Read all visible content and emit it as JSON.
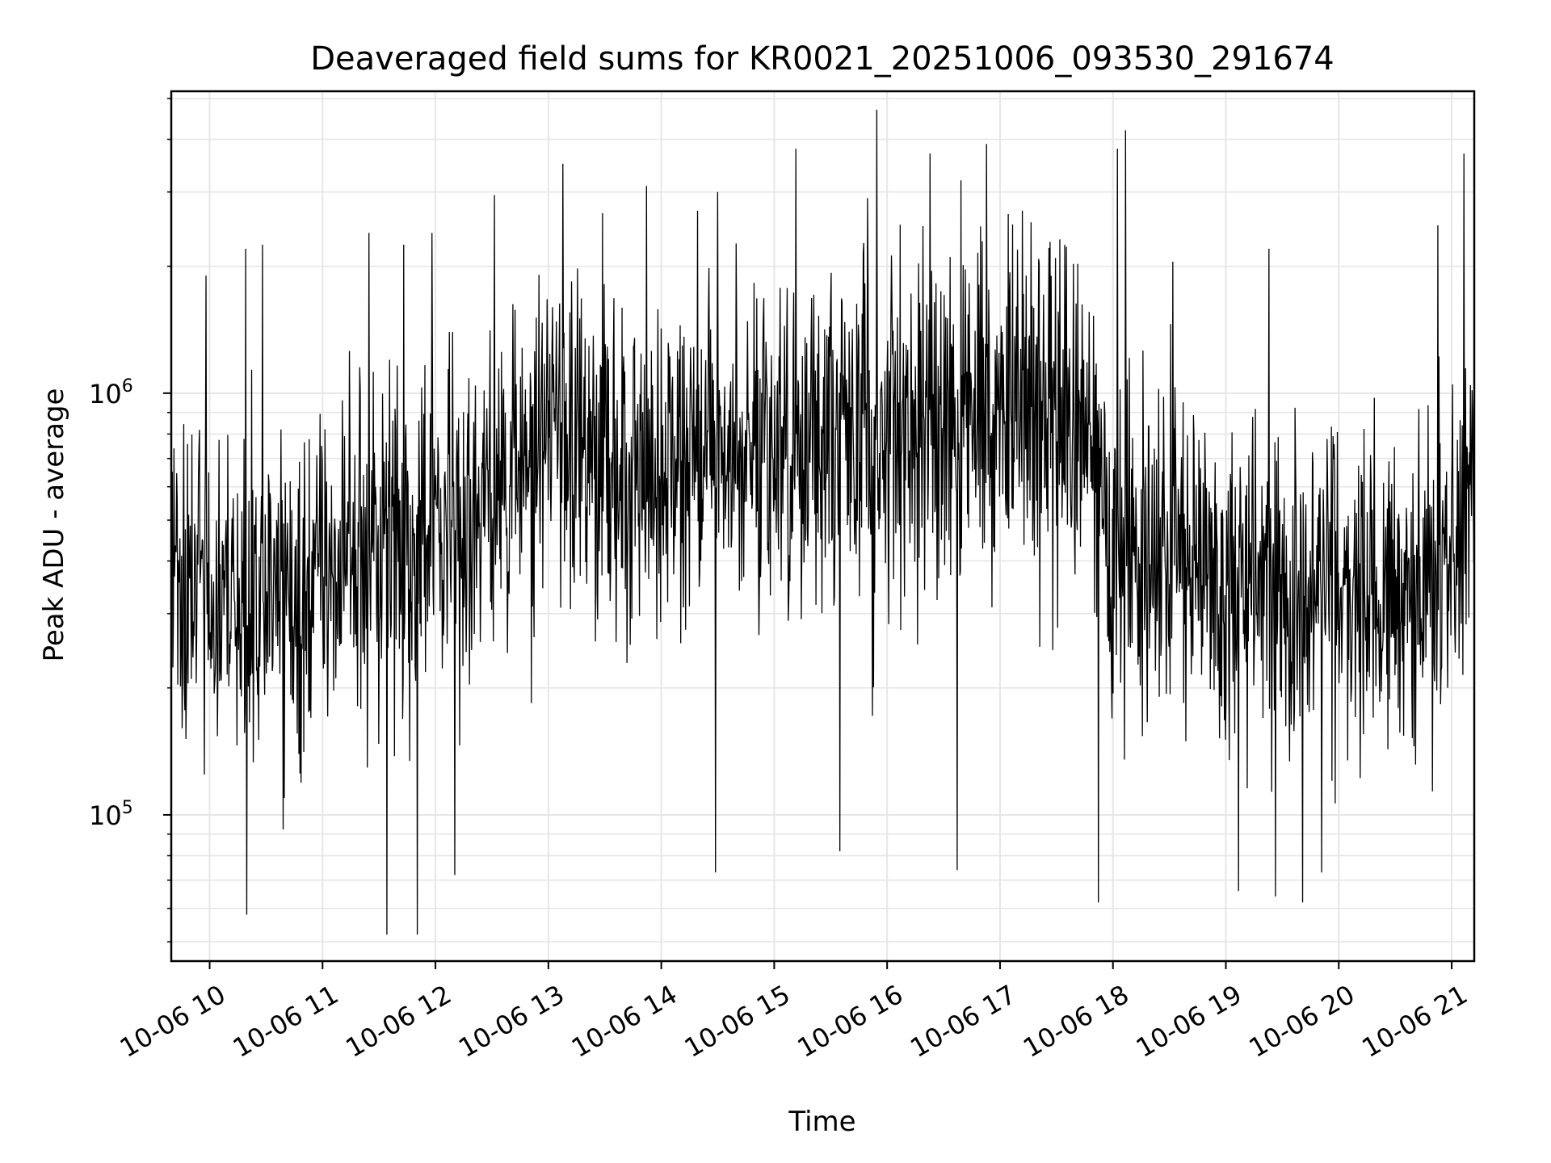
{
  "chart_data": {
    "type": "line",
    "title": "Deaveraged field sums for KR0021_20251006_093530_291674",
    "xlabel": "Time",
    "ylabel": "Peak ADU - average",
    "yscale": "log",
    "ylim": [
      45000,
      5200000
    ],
    "xlim_hours": [
      9.66,
      21.2
    ],
    "grid": true,
    "line_color": "#000000",
    "grid_color": "#e6e6e6",
    "x_ticks": [
      {
        "hour": 10,
        "label": "10-06 10"
      },
      {
        "hour": 11,
        "label": "10-06 11"
      },
      {
        "hour": 12,
        "label": "10-06 12"
      },
      {
        "hour": 13,
        "label": "10-06 13"
      },
      {
        "hour": 14,
        "label": "10-06 14"
      },
      {
        "hour": 15,
        "label": "10-06 15"
      },
      {
        "hour": 16,
        "label": "10-06 16"
      },
      {
        "hour": 17,
        "label": "10-06 17"
      },
      {
        "hour": 18,
        "label": "10-06 18"
      },
      {
        "hour": 19,
        "label": "10-06 19"
      },
      {
        "hour": 20,
        "label": "10-06 20"
      },
      {
        "hour": 21,
        "label": "10-06 21"
      }
    ],
    "y_ticks": [
      {
        "value": 100000,
        "base": "10",
        "exp": "5"
      },
      {
        "value": 1000000,
        "base": "10",
        "exp": "6"
      }
    ],
    "series": [
      {
        "name": "deaveraged field sum",
        "x_start_hour": 9.66,
        "x_end_hour": 21.2,
        "n_points": 2400,
        "trend_hours": [
          9.66,
          10.0,
          10.5,
          11.0,
          11.5,
          12.0,
          12.5,
          13.0,
          13.3,
          13.6,
          14.0,
          14.5,
          15.0,
          15.5,
          16.0,
          16.5,
          17.0,
          17.5,
          17.8,
          18.0,
          18.5,
          19.0,
          19.5,
          20.0,
          20.5,
          20.7,
          21.0,
          21.2
        ],
        "trend_values": [
          380000,
          340000,
          330000,
          360000,
          420000,
          480000,
          560000,
          780000,
          830000,
          620000,
          680000,
          720000,
          760000,
          720000,
          780000,
          860000,
          900000,
          900000,
          820000,
          440000,
          400000,
          360000,
          340000,
          330000,
          340000,
          330000,
          420000,
          680000
        ],
        "noise_decades": 0.28,
        "peaks": [
          {
            "hour": 9.97,
            "value": 1900000
          },
          {
            "hour": 10.32,
            "value": 2200000
          },
          {
            "hour": 10.47,
            "value": 2250000
          },
          {
            "hour": 11.41,
            "value": 2400000
          },
          {
            "hour": 11.72,
            "value": 2250000
          },
          {
            "hour": 11.97,
            "value": 2400000
          },
          {
            "hour": 12.52,
            "value": 2950000
          },
          {
            "hour": 13.13,
            "value": 3500000
          },
          {
            "hour": 13.87,
            "value": 3100000
          },
          {
            "hour": 14.5,
            "value": 3000000
          },
          {
            "hour": 15.19,
            "value": 3800000
          },
          {
            "hour": 15.91,
            "value": 4700000
          },
          {
            "hour": 16.38,
            "value": 3700000
          },
          {
            "hour": 16.88,
            "value": 3900000
          },
          {
            "hour": 18.11,
            "value": 4200000
          },
          {
            "hour": 18.04,
            "value": 3800000
          },
          {
            "hour": 18.53,
            "value": 2050000
          },
          {
            "hour": 19.38,
            "value": 2200000
          },
          {
            "hour": 20.88,
            "value": 2500000
          },
          {
            "hour": 21.11,
            "value": 3700000
          }
        ],
        "troughs": [
          {
            "hour": 10.33,
            "value": 58000
          },
          {
            "hour": 11.57,
            "value": 52000
          },
          {
            "hour": 11.84,
            "value": 52000
          },
          {
            "hour": 12.17,
            "value": 72000
          },
          {
            "hour": 14.48,
            "value": 73000
          },
          {
            "hour": 15.58,
            "value": 82000
          },
          {
            "hour": 16.62,
            "value": 74000
          },
          {
            "hour": 17.87,
            "value": 62000
          },
          {
            "hour": 19.11,
            "value": 66000
          },
          {
            "hour": 19.44,
            "value": 64000
          },
          {
            "hour": 19.68,
            "value": 62000
          },
          {
            "hour": 19.85,
            "value": 73000
          }
        ]
      }
    ]
  }
}
